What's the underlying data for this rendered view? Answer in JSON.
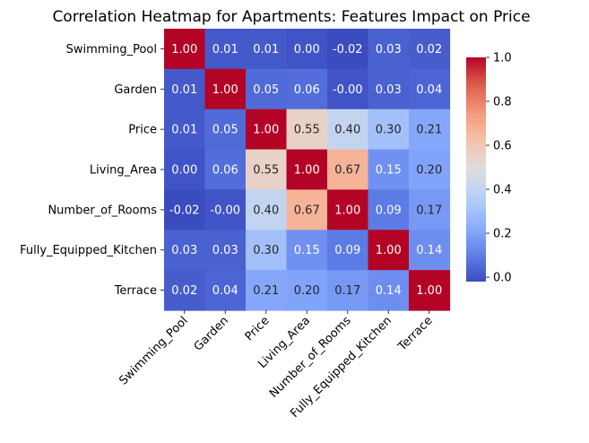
{
  "chart_data": {
    "type": "heatmap",
    "title": "Correlation Heatmap for Apartments: Features Impact on Price",
    "xlabel": "",
    "ylabel": "",
    "colormap": "coolwarm",
    "annotations_format": "0.00",
    "row_labels": [
      "Swimming_Pool",
      "Garden",
      "Price",
      "Living_Area",
      "Number_of_Rooms",
      "Fully_Equipped_Kitchen",
      "Terrace"
    ],
    "col_labels": [
      "Swimming_Pool",
      "Garden",
      "Price",
      "Living_Area",
      "Number_of_Rooms",
      "Fully_Equipped_Kitchen",
      "Terrace"
    ],
    "values": [
      [
        1.0,
        0.01,
        0.01,
        0.0,
        -0.02,
        0.03,
        0.02
      ],
      [
        0.01,
        1.0,
        0.05,
        0.06,
        -0.0,
        0.03,
        0.04
      ],
      [
        0.01,
        0.05,
        1.0,
        0.55,
        0.4,
        0.3,
        0.21
      ],
      [
        0.0,
        0.06,
        0.55,
        1.0,
        0.67,
        0.15,
        0.2
      ],
      [
        -0.02,
        -0.0,
        0.4,
        0.67,
        1.0,
        0.09,
        0.17
      ],
      [
        0.03,
        0.03,
        0.3,
        0.15,
        0.09,
        1.0,
        0.14
      ],
      [
        0.02,
        0.04,
        0.21,
        0.2,
        0.17,
        0.14,
        1.0
      ]
    ],
    "value_labels": [
      [
        "1.00",
        "0.01",
        "0.01",
        "0.00",
        "-0.02",
        "0.03",
        "0.02"
      ],
      [
        "0.01",
        "1.00",
        "0.05",
        "0.06",
        "-0.00",
        "0.03",
        "0.04"
      ],
      [
        "0.01",
        "0.05",
        "1.00",
        "0.55",
        "0.40",
        "0.30",
        "0.21"
      ],
      [
        "0.00",
        "0.06",
        "0.55",
        "1.00",
        "0.67",
        "0.15",
        "0.20"
      ],
      [
        "-0.02",
        "-0.00",
        "0.40",
        "0.67",
        "1.00",
        "0.09",
        "0.17"
      ],
      [
        "0.03",
        "0.03",
        "0.30",
        "0.15",
        "0.09",
        "1.00",
        "0.14"
      ],
      [
        "0.02",
        "0.04",
        "0.21",
        "0.20",
        "0.17",
        "0.14",
        "1.00"
      ]
    ],
    "vmin": -0.02,
    "vmax": 1.0,
    "colorbar_ticks": [
      0.0,
      0.2,
      0.4,
      0.6,
      0.8,
      1.0
    ],
    "colorbar_tick_labels": [
      "0.0",
      "0.2",
      "0.4",
      "0.6",
      "0.8",
      "1.0"
    ],
    "grid": false,
    "colorbar_position": "right"
  }
}
